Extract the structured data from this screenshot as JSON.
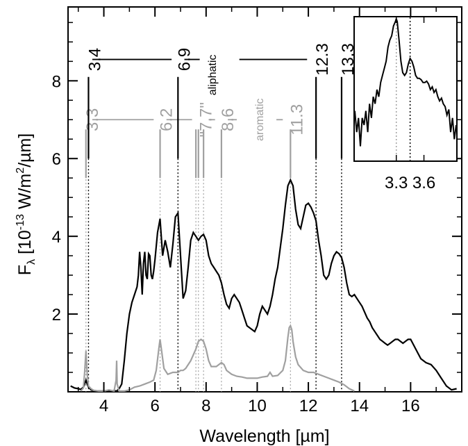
{
  "chart_data": [
    {
      "type": "line",
      "xlabel": "Wavelength [µm]",
      "ylabel": {
        "main": "F",
        "sub": "λ",
        "unit_pre": " [10",
        "unit_exp": "-13",
        "unit_mid": " W/m",
        "unit_exp2": "2",
        "unit_post": "/µm]"
      },
      "xlim": [
        2.6,
        18.0
      ],
      "ylim": [
        0,
        9.9
      ],
      "xticks": [
        4,
        6,
        8,
        10,
        12,
        14,
        16
      ],
      "yticks": [
        2,
        4,
        6,
        8
      ],
      "grid": false,
      "series": [
        {
          "color": "#000000",
          "x": [
            2.7,
            2.85,
            3.0,
            3.1,
            3.2,
            3.25,
            3.3,
            3.35,
            3.4,
            3.5,
            3.6,
            3.7,
            3.8,
            3.9,
            4.0,
            4.1,
            4.2,
            4.3,
            4.4,
            4.5,
            4.6,
            4.7,
            4.8,
            4.9,
            5.0,
            5.1,
            5.2,
            5.3,
            5.35,
            5.4,
            5.45,
            5.5,
            5.55,
            5.6,
            5.65,
            5.7,
            5.75,
            5.8,
            5.85,
            5.9,
            5.95,
            6.0,
            6.1,
            6.2,
            6.3,
            6.4,
            6.5,
            6.6,
            6.7,
            6.8,
            6.9,
            7.0,
            7.1,
            7.2,
            7.3,
            7.4,
            7.5,
            7.6,
            7.7,
            7.8,
            7.9,
            8.0,
            8.1,
            8.2,
            8.3,
            8.4,
            8.5,
            8.6,
            8.7,
            8.8,
            8.9,
            9.0,
            9.1,
            9.2,
            9.3,
            9.4,
            9.5,
            9.6,
            9.7,
            9.8,
            9.9,
            10.0,
            10.1,
            10.2,
            10.3,
            10.4,
            10.5,
            10.6,
            10.7,
            10.8,
            10.9,
            11.0,
            11.1,
            11.2,
            11.3,
            11.4,
            11.5,
            11.6,
            11.7,
            11.8,
            11.9,
            12.0,
            12.1,
            12.2,
            12.3,
            12.4,
            12.5,
            12.6,
            12.7,
            12.8,
            12.9,
            13.0,
            13.1,
            13.2,
            13.3,
            13.4,
            13.5,
            13.6,
            13.7,
            13.8,
            13.9,
            14.0,
            14.1,
            14.2,
            14.3,
            14.4,
            14.5,
            14.6,
            14.7,
            14.8,
            14.9,
            15.0,
            15.1,
            15.2,
            15.3,
            15.4,
            15.5,
            15.6,
            15.7,
            15.8,
            15.9,
            16.0,
            16.2,
            16.4,
            16.6,
            16.8,
            17.0,
            17.2,
            17.4,
            17.6,
            17.8
          ],
          "y": [
            0.15,
            0.1,
            0.08,
            0.06,
            0.12,
            0.2,
            0.3,
            0.2,
            0.12,
            0.05,
            0.03,
            0.02,
            0.02,
            0.02,
            0.02,
            0.03,
            0.02,
            0.02,
            0.03,
            0.02,
            0.08,
            0.2,
            0.8,
            1.5,
            2.0,
            2.3,
            2.5,
            2.7,
            3.0,
            3.6,
            3.2,
            2.5,
            3.3,
            3.6,
            3.0,
            2.9,
            3.55,
            3.5,
            3.0,
            2.9,
            3.1,
            3.4,
            4.1,
            4.45,
            3.5,
            3.9,
            3.6,
            3.2,
            3.8,
            4.5,
            4.6,
            3.5,
            2.4,
            2.6,
            3.2,
            3.9,
            4.1,
            4.0,
            3.9,
            4.0,
            4.05,
            3.9,
            3.5,
            3.3,
            3.2,
            3.1,
            3.0,
            2.8,
            2.5,
            2.25,
            2.15,
            2.4,
            2.5,
            2.4,
            2.3,
            2.1,
            1.9,
            1.7,
            1.65,
            1.6,
            1.55,
            1.7,
            2.0,
            2.2,
            2.1,
            2.0,
            2.2,
            2.5,
            2.9,
            3.2,
            3.7,
            4.2,
            4.8,
            5.3,
            5.45,
            5.3,
            4.7,
            4.3,
            4.2,
            4.5,
            4.8,
            4.85,
            4.75,
            4.6,
            4.4,
            3.9,
            3.5,
            3.0,
            2.9,
            3.0,
            3.3,
            3.5,
            3.6,
            3.55,
            3.45,
            3.2,
            2.8,
            2.5,
            2.45,
            2.5,
            2.4,
            2.3,
            2.2,
            2.05,
            1.9,
            1.8,
            1.65,
            1.55,
            1.45,
            1.35,
            1.3,
            1.25,
            1.2,
            1.25,
            1.3,
            1.35,
            1.35,
            1.3,
            1.25,
            1.3,
            1.35,
            1.35,
            1.1,
            0.85,
            0.75,
            0.7,
            0.55,
            0.35,
            0.15,
            0.05,
            0.08
          ]
        },
        {
          "color": "#a0a0a0",
          "x": [
            3.1,
            3.2,
            3.25,
            3.3,
            3.35,
            3.4,
            3.5,
            3.6,
            3.8,
            4.0,
            4.2,
            4.4,
            4.48,
            4.5,
            4.52,
            4.6,
            4.8,
            5.0,
            5.2,
            5.4,
            5.6,
            5.8,
            5.95,
            6.05,
            6.15,
            6.2,
            6.25,
            6.35,
            6.5,
            6.7,
            6.9,
            7.0,
            7.1,
            7.2,
            7.4,
            7.6,
            7.7,
            7.8,
            7.9,
            8.0,
            8.1,
            8.2,
            8.4,
            8.6,
            8.7,
            8.8,
            9.0,
            9.2,
            9.4,
            9.6,
            9.8,
            10.0,
            10.2,
            10.4,
            10.5,
            10.55,
            10.6,
            10.8,
            11.0,
            11.1,
            11.2,
            11.25,
            11.3,
            11.35,
            11.4,
            11.5,
            11.6,
            11.8,
            12.0,
            12.2,
            12.4,
            12.6,
            12.8,
            13.0,
            13.2,
            13.4,
            13.6,
            13.8
          ],
          "y": [
            0.02,
            0.1,
            0.5,
            1.05,
            0.45,
            0.15,
            0.08,
            0.04,
            0.02,
            0.02,
            0.05,
            0.02,
            0.3,
            0.8,
            0.2,
            0.02,
            0.02,
            0.05,
            0.12,
            0.15,
            0.2,
            0.25,
            0.3,
            0.55,
            1.1,
            1.35,
            1.1,
            0.6,
            0.45,
            0.5,
            0.5,
            0.55,
            0.55,
            0.6,
            0.8,
            1.1,
            1.3,
            1.35,
            1.3,
            1.1,
            0.8,
            0.65,
            0.65,
            0.75,
            0.7,
            0.55,
            0.45,
            0.4,
            0.38,
            0.35,
            0.35,
            0.35,
            0.38,
            0.4,
            0.5,
            0.45,
            0.4,
            0.42,
            0.55,
            0.8,
            1.4,
            1.65,
            1.7,
            1.6,
            1.3,
            0.9,
            0.7,
            0.55,
            0.5,
            0.5,
            0.45,
            0.4,
            0.35,
            0.3,
            0.25,
            0.18,
            0.08,
            0.02
          ]
        }
      ],
      "aliphatic": {
        "label": "aliphatic",
        "lines": [
          "3.4",
          "6.9",
          "12.3",
          "13.3"
        ],
        "positions": [
          3.4,
          6.9,
          12.3,
          13.3
        ],
        "color": "#000000"
      },
      "aromatic": {
        "label": "aromatic",
        "lines": [
          "3.3",
          "6.2",
          "\"7.7\"",
          "8.6",
          "11.3"
        ],
        "positions": [
          3.3,
          6.2,
          7.7,
          8.6,
          11.3
        ],
        "extra_positions": [
          7.6,
          7.9
        ],
        "color": "#a0a0a0"
      }
    },
    {
      "type": "line",
      "xlim": [
        2.85,
        3.95
      ],
      "xticks": [
        "3.3",
        "3.6"
      ],
      "xtick_positions": [
        3.3,
        3.6
      ],
      "dotted_lines": [
        3.3,
        3.45
      ],
      "series": [
        {
          "color": "#000000",
          "x": [
            2.85,
            2.87,
            2.89,
            2.91,
            2.93,
            2.95,
            2.97,
            2.99,
            3.01,
            3.03,
            3.05,
            3.07,
            3.09,
            3.11,
            3.13,
            3.15,
            3.17,
            3.19,
            3.21,
            3.23,
            3.25,
            3.27,
            3.29,
            3.3,
            3.31,
            3.33,
            3.35,
            3.37,
            3.39,
            3.41,
            3.43,
            3.45,
            3.47,
            3.49,
            3.51,
            3.53,
            3.55,
            3.57,
            3.59,
            3.61,
            3.63,
            3.65,
            3.67,
            3.69,
            3.71,
            3.73,
            3.75,
            3.77,
            3.79,
            3.81,
            3.83,
            3.85,
            3.87,
            3.89,
            3.91,
            3.93,
            3.95
          ],
          "y": [
            0.35,
            0.2,
            0.3,
            0.1,
            0.3,
            0.25,
            0.35,
            0.2,
            0.4,
            0.3,
            0.45,
            0.4,
            0.5,
            0.45,
            0.55,
            0.6,
            0.65,
            0.7,
            0.8,
            0.85,
            0.88,
            0.95,
            0.98,
            1.0,
            0.98,
            0.85,
            0.7,
            0.62,
            0.6,
            0.62,
            0.68,
            0.72,
            0.7,
            0.66,
            0.6,
            0.58,
            0.58,
            0.57,
            0.55,
            0.55,
            0.56,
            0.54,
            0.5,
            0.52,
            0.48,
            0.5,
            0.45,
            0.42,
            0.44,
            0.4,
            0.38,
            0.32,
            0.36,
            0.2,
            0.3,
            0.15,
            0.25
          ]
        }
      ]
    }
  ]
}
